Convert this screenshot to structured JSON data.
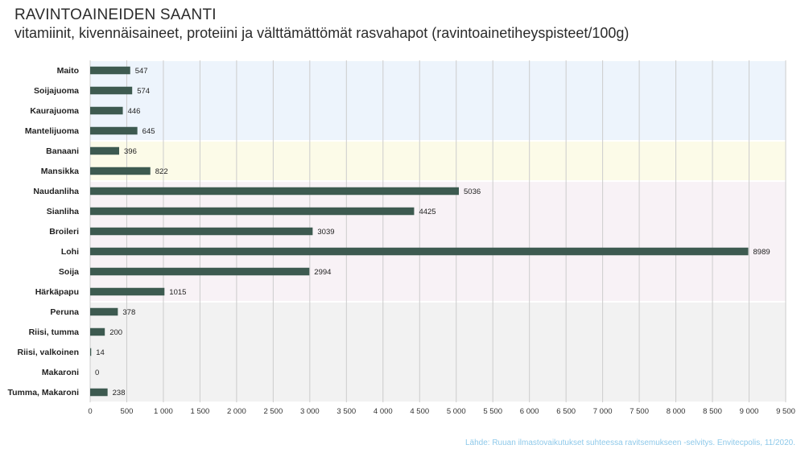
{
  "header": {
    "title": "RAVINTOAINEIDEN SAANTI",
    "subtitle": "vitamiinit, kivennäisaineet, proteiini ja välttämättömät rasvahapot (ravintoainetiheyspisteet/100g)"
  },
  "footer": {
    "source": "Lähde: Ruuan ilmastovaikutukset suhteessa ravitsemukseen -selvitys. Envitecpolis, 11/2020."
  },
  "chart_data": {
    "type": "bar",
    "orientation": "horizontal",
    "title": "RAVINTOAINEIDEN SAANTI",
    "subtitle": "vitamiinit, kivennäisaineet, proteiini ja välttämättömät rasvahapot (ravintoainetiheyspisteet/100g)",
    "xlabel": "",
    "ylabel": "",
    "xlim": [
      0,
      9500
    ],
    "ticks": [
      0,
      500,
      1000,
      1500,
      2000,
      2500,
      3000,
      3500,
      4000,
      4500,
      5000,
      5500,
      6000,
      6500,
      7000,
      7500,
      8000,
      8500,
      9000,
      9500
    ],
    "tick_labels": [
      "0",
      "500",
      "1 000",
      "1 500",
      "2 000",
      "2 500",
      "3 000",
      "3 500",
      "4 000",
      "4 500",
      "5 000",
      "5 500",
      "6 000",
      "6 500",
      "7 000",
      "7 500",
      "8 000",
      "8 500",
      "9 000",
      "9 500"
    ],
    "grid": true,
    "categories": [
      "Maito",
      "Soijajuoma",
      "Kaurajuoma",
      "Mantelijuoma",
      "Banaani",
      "Mansikka",
      "Naudanliha",
      "Sianliha",
      "Broileri",
      "Lohi",
      "Soija",
      "Härkäpapu",
      "Peruna",
      "Riisi, tumma",
      "Riisi, valkoinen",
      "Makaroni",
      "Tumma, Makaroni"
    ],
    "values": [
      547,
      574,
      446,
      645,
      396,
      822,
      5036,
      4425,
      3039,
      8989,
      2994,
      1015,
      378,
      200,
      14,
      0,
      238
    ],
    "value_labels": [
      "547",
      "574",
      "446",
      "645",
      "396",
      "822",
      "5036",
      "4425",
      "3039",
      "8989",
      "2994",
      "1015",
      "378",
      "200",
      "14",
      "0",
      "238"
    ],
    "bar_color": "#3d5a50",
    "groups": [
      {
        "from": 0,
        "to": 3,
        "color": "#edf4fc"
      },
      {
        "from": 4,
        "to": 5,
        "color": "#fcfbe8"
      },
      {
        "from": 6,
        "to": 11,
        "color": "#f8f2f6"
      },
      {
        "from": 12,
        "to": 16,
        "color": "#f2f2f2"
      }
    ]
  }
}
